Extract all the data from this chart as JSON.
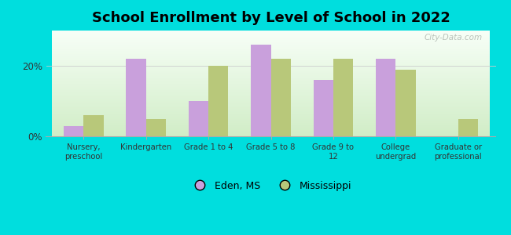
{
  "title": "School Enrollment by Level of School in 2022",
  "categories": [
    "Nursery,\npreschool",
    "Kindergarten",
    "Grade 1 to 4",
    "Grade 5 to 8",
    "Grade 9 to\n12",
    "College\nundergrad",
    "Graduate or\nprofessional"
  ],
  "eden_values": [
    3.0,
    22.0,
    10.0,
    26.0,
    16.0,
    22.0,
    0.0
  ],
  "ms_values": [
    6.0,
    5.0,
    20.0,
    22.0,
    22.0,
    19.0,
    5.0
  ],
  "eden_color": "#c9a0dc",
  "ms_color": "#b8c87a",
  "background_color": "#00dede",
  "plot_bg": "#eaf5e8",
  "ylim": [
    0,
    30
  ],
  "yticks": [
    0,
    20
  ],
  "ytick_labels": [
    "0%",
    "20%"
  ],
  "legend_labels": [
    "Eden, MS",
    "Mississippi"
  ],
  "title_fontsize": 13,
  "bar_width": 0.32,
  "watermark": "City-Data.com"
}
